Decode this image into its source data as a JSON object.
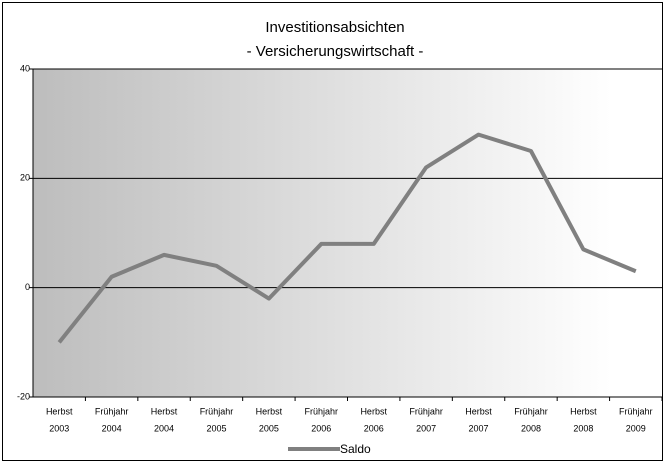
{
  "chart_data": {
    "type": "line",
    "title": "Investitionsabsichten",
    "subtitle": "- Versicherungswirtschaft -",
    "categories": [
      [
        "Herbst",
        "2003"
      ],
      [
        "Frühjahr",
        "2004"
      ],
      [
        "Herbst",
        "2004"
      ],
      [
        "Frühjahr",
        "2005"
      ],
      [
        "Herbst",
        "2005"
      ],
      [
        "Frühjahr",
        "2006"
      ],
      [
        "Herbst",
        "2006"
      ],
      [
        "Frühjahr",
        "2007"
      ],
      [
        "Herbst",
        "2007"
      ],
      [
        "Frühjahr",
        "2008"
      ],
      [
        "Herbst",
        "2008"
      ],
      [
        "Frühjahr",
        "2009"
      ]
    ],
    "series": [
      {
        "name": "Saldo",
        "color": "#808080",
        "values": [
          -10,
          2,
          6,
          4,
          -2,
          8,
          8,
          22,
          28,
          25,
          7,
          3
        ]
      }
    ],
    "ylim": [
      -20,
      40
    ],
    "yticks": [
      -20,
      0,
      20,
      40
    ],
    "grid": true
  }
}
